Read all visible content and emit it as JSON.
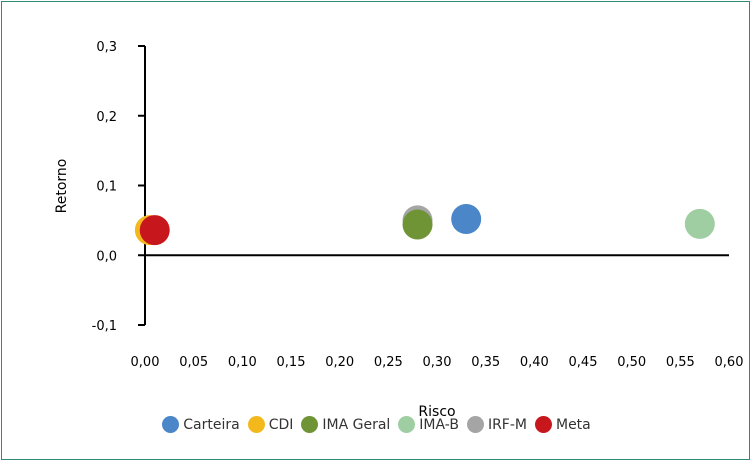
{
  "chart_data": {
    "type": "scatter",
    "xlabel": "Risco",
    "ylabel": "Retorno",
    "xlim": [
      0.0,
      0.6
    ],
    "ylim": [
      -0.1,
      0.3
    ],
    "x_ticks": [
      "0,00",
      "0,05",
      "0,10",
      "0,15",
      "0,20",
      "0,25",
      "0,30",
      "0,35",
      "0,40",
      "0,45",
      "0,50",
      "0,55",
      "0,60"
    ],
    "y_ticks": [
      "0,3",
      "0,2",
      "0,1",
      "0,0",
      "-0,1"
    ],
    "legend_position": "bottom",
    "series": [
      {
        "name": "Carteira",
        "color": "#4a86c8",
        "x": 0.33,
        "y": 0.052
      },
      {
        "name": "CDI",
        "color": "#f3b91c",
        "x": 0.005,
        "y": 0.036
      },
      {
        "name": "IMA Geral",
        "color": "#6e9436",
        "x": 0.28,
        "y": 0.044
      },
      {
        "name": "IMA-B",
        "color": "#9fcea3",
        "x": 0.57,
        "y": 0.045
      },
      {
        "name": "IRF-M",
        "color": "#a5a5a5",
        "x": 0.28,
        "y": 0.05
      },
      {
        "name": "Meta",
        "color": "#c8161d",
        "x": 0.01,
        "y": 0.036
      }
    ]
  }
}
